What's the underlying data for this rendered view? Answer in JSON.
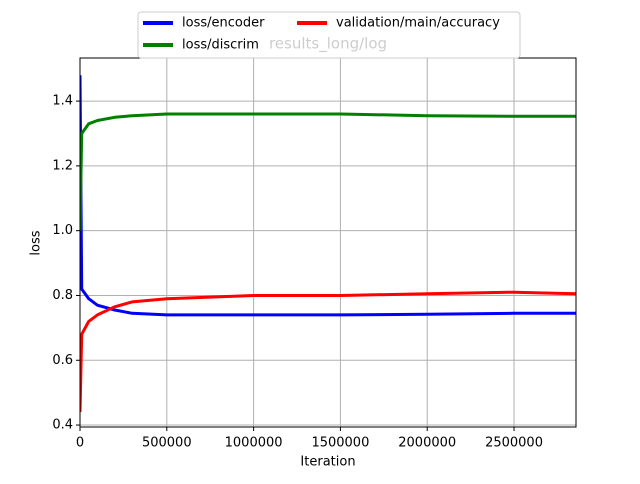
{
  "chart_data": {
    "type": "line",
    "title": "results_long/log",
    "x_label": "Iteration",
    "y_label": "loss",
    "x": [
      0,
      10000,
      50000,
      100000,
      200000,
      300000,
      500000,
      1000000,
      1500000,
      2000000,
      2500000,
      2857000
    ],
    "series": [
      {
        "name": "loss/encoder",
        "color": "#0000ff",
        "values": [
          1.48,
          0.82,
          0.79,
          0.77,
          0.755,
          0.745,
          0.74,
          0.74,
          0.74,
          0.742,
          0.745,
          0.745
        ]
      },
      {
        "name": "loss/discrim",
        "color": "#008000",
        "values": [
          1.0,
          1.3,
          1.33,
          1.34,
          1.35,
          1.355,
          1.36,
          1.36,
          1.36,
          1.355,
          1.353,
          1.353
        ]
      },
      {
        "name": "validation/main/accuracy",
        "color": "#ff0000",
        "values": [
          0.44,
          0.68,
          0.72,
          0.74,
          0.765,
          0.78,
          0.79,
          0.8,
          0.8,
          0.805,
          0.81,
          0.805
        ]
      }
    ],
    "xlim": [
      0,
      2857000
    ],
    "ylim": [
      0.394,
      1.533
    ],
    "xticks": [
      0,
      500000,
      1000000,
      1500000,
      2000000,
      2500000
    ],
    "yticks": [
      0.4,
      0.6,
      0.8,
      {
        "value": 1,
        "label": "1.0"
      },
      1.2,
      1.4
    ],
    "grid": true,
    "legend": "upper center"
  }
}
